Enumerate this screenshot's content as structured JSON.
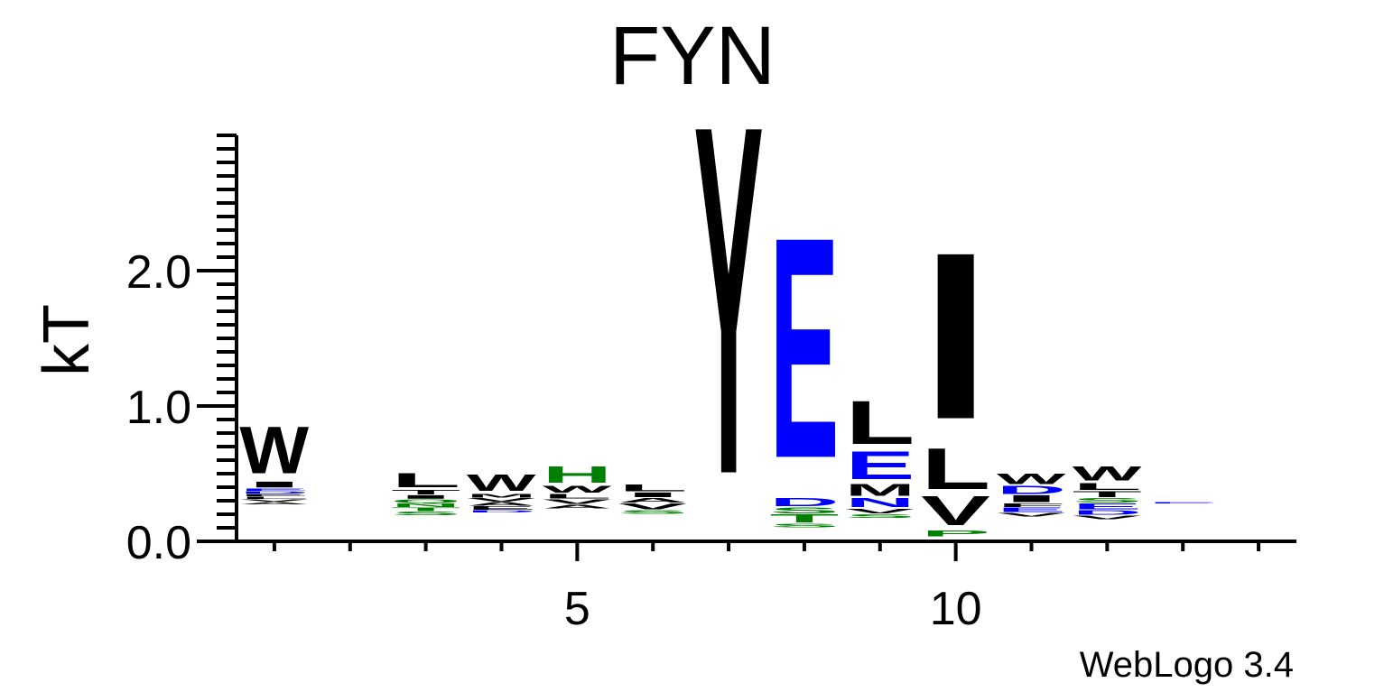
{
  "chart_data": {
    "type": "sequence-logo",
    "title": "FYN",
    "ylabel": "kT",
    "xlabel": "",
    "ylim": [
      0,
      3.0
    ],
    "yticks": [
      {
        "value": 0.0,
        "label": "0.0"
      },
      {
        "value": 1.0,
        "label": "1.0"
      },
      {
        "value": 2.0,
        "label": "2.0"
      }
    ],
    "xlim": [
      0.5,
      14.5
    ],
    "xticks": [
      {
        "value": 5,
        "label": "5"
      },
      {
        "value": 10,
        "label": "10"
      }
    ],
    "credit": "WebLogo 3.4",
    "colors": {
      "hydrophobic": "#000000",
      "polar": "#008000",
      "acidic": "#0000ff"
    },
    "positions": [
      {
        "position": 1,
        "base": 0.27,
        "stack": [
          {
            "letter": "A",
            "height": 0.02,
            "class": "hydrophobic"
          },
          {
            "letter": "V",
            "height": 0.02,
            "class": "hydrophobic"
          },
          {
            "letter": "L",
            "height": 0.02,
            "class": "hydrophobic"
          },
          {
            "letter": "E",
            "height": 0.02,
            "class": "hydrophobic"
          },
          {
            "letter": "D",
            "height": 0.02,
            "class": "acidic"
          },
          {
            "letter": "E",
            "height": 0.02,
            "class": "acidic"
          },
          {
            "letter": "I",
            "height": 0.05,
            "class": "hydrophobic"
          },
          {
            "letter": "W",
            "height": 0.4,
            "class": "hydrophobic"
          }
        ]
      },
      {
        "position": 3,
        "base": 0.19,
        "stack": [
          {
            "letter": "S",
            "height": 0.03,
            "class": "polar"
          },
          {
            "letter": "T",
            "height": 0.03,
            "class": "polar"
          },
          {
            "letter": "N",
            "height": 0.03,
            "class": "polar"
          },
          {
            "letter": "Q",
            "height": 0.03,
            "class": "polar"
          },
          {
            "letter": "I",
            "height": 0.03,
            "class": "hydrophobic"
          },
          {
            "letter": "T",
            "height": 0.04,
            "class": "hydrophobic"
          },
          {
            "letter": "L",
            "height": 0.12,
            "class": "hydrophobic"
          }
        ]
      },
      {
        "position": 4,
        "base": 0.21,
        "stack": [
          {
            "letter": "D",
            "height": 0.02,
            "class": "acidic"
          },
          {
            "letter": "E",
            "height": 0.03,
            "class": "hydrophobic"
          },
          {
            "letter": "A",
            "height": 0.03,
            "class": "hydrophobic"
          },
          {
            "letter": "V",
            "height": 0.03,
            "class": "hydrophobic"
          },
          {
            "letter": "M",
            "height": 0.03,
            "class": "hydrophobic"
          },
          {
            "letter": "W",
            "height": 0.14,
            "class": "hydrophobic"
          }
        ]
      },
      {
        "position": 5,
        "base": 0.24,
        "stack": [
          {
            "letter": "A",
            "height": 0.03,
            "class": "hydrophobic"
          },
          {
            "letter": "V",
            "height": 0.04,
            "class": "hydrophobic"
          },
          {
            "letter": "L",
            "height": 0.04,
            "class": "hydrophobic"
          },
          {
            "letter": "W",
            "height": 0.06,
            "class": "hydrophobic"
          },
          {
            "letter": "H",
            "height": 0.14,
            "class": "polar"
          }
        ]
      },
      {
        "position": 6,
        "base": 0.2,
        "stack": [
          {
            "letter": "S",
            "height": 0.03,
            "class": "polar"
          },
          {
            "letter": "V",
            "height": 0.05,
            "class": "hydrophobic"
          },
          {
            "letter": "A",
            "height": 0.04,
            "class": "hydrophobic"
          },
          {
            "letter": "I",
            "height": 0.04,
            "class": "hydrophobic"
          },
          {
            "letter": "L",
            "height": 0.06,
            "class": "hydrophobic"
          }
        ]
      },
      {
        "position": 7,
        "base": 0.03,
        "stack": [
          {
            "letter": "Y",
            "height": 2.97,
            "class": "hydrophobic"
          }
        ]
      },
      {
        "position": 8,
        "base": 0.1,
        "stack": [
          {
            "letter": "S",
            "height": 0.03,
            "class": "polar"
          },
          {
            "letter": "T",
            "height": 0.07,
            "class": "polar"
          },
          {
            "letter": "S",
            "height": 0.05,
            "class": "polar"
          },
          {
            "letter": "D",
            "height": 0.07,
            "class": "acidic"
          },
          {
            "letter": "E",
            "height": 1.88,
            "class": "acidic"
          }
        ]
      },
      {
        "position": 9,
        "base": 0.17,
        "stack": [
          {
            "letter": "S",
            "height": 0.03,
            "class": "polar"
          },
          {
            "letter": "V",
            "height": 0.04,
            "class": "hydrophobic"
          },
          {
            "letter": "N",
            "height": 0.08,
            "class": "acidic"
          },
          {
            "letter": "M",
            "height": 0.1,
            "class": "hydrophobic"
          },
          {
            "letter": "E",
            "height": 0.24,
            "class": "acidic"
          },
          {
            "letter": "L",
            "height": 0.37,
            "class": "hydrophobic"
          }
        ]
      },
      {
        "position": 10,
        "base": 0.03,
        "stack": [
          {
            "letter": "P",
            "height": 0.05,
            "class": "polar"
          },
          {
            "letter": "V",
            "height": 0.25,
            "class": "hydrophobic"
          },
          {
            "letter": "L",
            "height": 0.35,
            "class": "hydrophobic"
          },
          {
            "letter": "I",
            "height": 1.42,
            "class": "hydrophobic"
          }
        ]
      },
      {
        "position": 11,
        "base": 0.18,
        "stack": [
          {
            "letter": "V",
            "height": 0.03,
            "class": "hydrophobic"
          },
          {
            "letter": "E",
            "height": 0.04,
            "class": "acidic"
          },
          {
            "letter": "F",
            "height": 0.03,
            "class": "hydrophobic"
          },
          {
            "letter": "I",
            "height": 0.06,
            "class": "hydrophobic"
          },
          {
            "letter": "D",
            "height": 0.07,
            "class": "acidic"
          },
          {
            "letter": "W",
            "height": 0.09,
            "class": "hydrophobic"
          }
        ]
      },
      {
        "position": 12,
        "base": 0.16,
        "stack": [
          {
            "letter": "V",
            "height": 0.03,
            "class": "hydrophobic"
          },
          {
            "letter": "D",
            "height": 0.04,
            "class": "acidic"
          },
          {
            "letter": "E",
            "height": 0.05,
            "class": "acidic"
          },
          {
            "letter": "S",
            "height": 0.04,
            "class": "polar"
          },
          {
            "letter": "T",
            "height": 0.05,
            "class": "hydrophobic"
          },
          {
            "letter": "L",
            "height": 0.06,
            "class": "hydrophobic"
          },
          {
            "letter": "W",
            "height": 0.12,
            "class": "hydrophobic"
          }
        ]
      },
      {
        "position": 13,
        "base": 0.28,
        "stack": [
          {
            "letter": "E",
            "height": 0.008,
            "class": "acidic"
          }
        ]
      }
    ]
  }
}
